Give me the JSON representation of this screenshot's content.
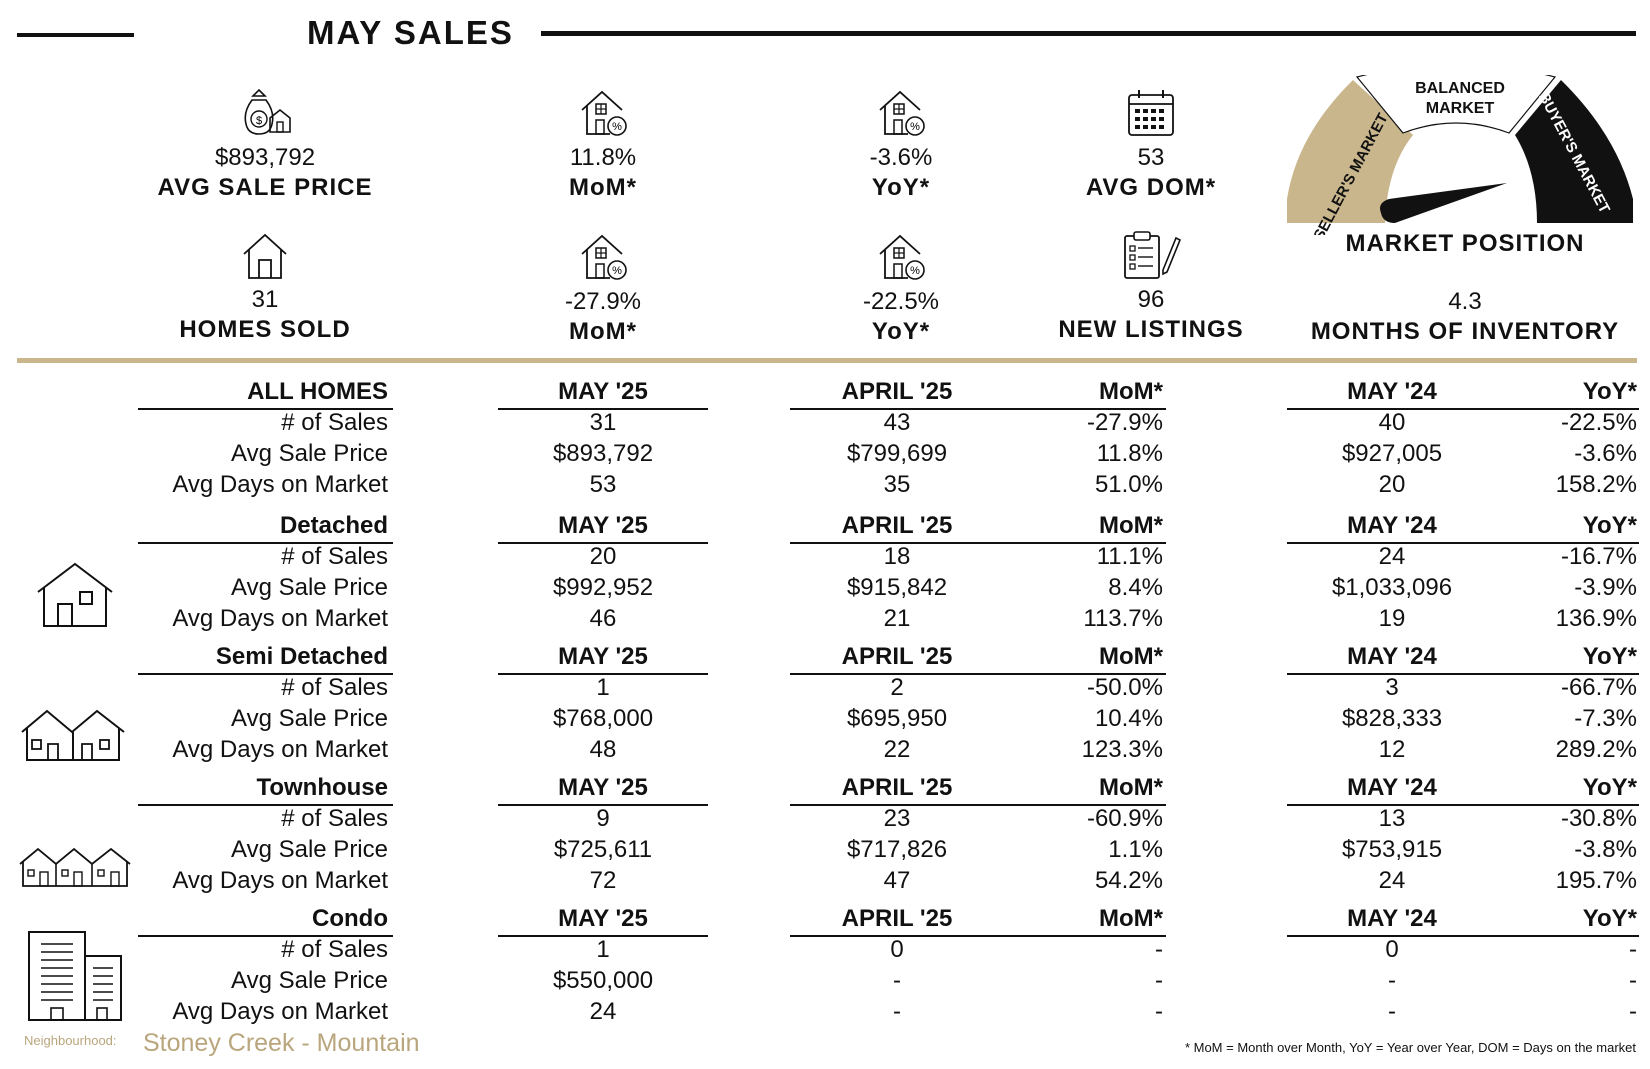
{
  "header": {
    "title": "MAY SALES"
  },
  "kpis_top": [
    {
      "value": "$893,792",
      "label": "AVG SALE PRICE",
      "icon": "money-bag-house-icon"
    },
    {
      "value": "11.8%",
      "label": "MoM*",
      "icon": "house-percent-icon"
    },
    {
      "value": "-3.6%",
      "label": "YoY*",
      "icon": "house-percent-icon"
    },
    {
      "value": "53",
      "label": "AVG DOM*",
      "icon": "calendar-icon"
    }
  ],
  "kpis_bottom": [
    {
      "value": "31",
      "label": "HOMES SOLD",
      "icon": "house-icon"
    },
    {
      "value": "-27.9%",
      "label": "MoM*",
      "icon": "house-percent-icon"
    },
    {
      "value": "-22.5%",
      "label": "YoY*",
      "icon": "house-percent-icon"
    },
    {
      "value": "96",
      "label": "NEW LISTINGS",
      "icon": "clipboard-pen-icon"
    },
    {
      "value": "4.3",
      "label": "MONTHS OF INVENTORY"
    }
  ],
  "gauge": {
    "sellers": "SELLER'S MARKET",
    "balanced_line1": "BALANCED",
    "balanced_line2": "MARKET",
    "buyers": "BUYER'S MARKET",
    "label": "MARKET POSITION",
    "colors": {
      "sellers": "#c9b68d",
      "balanced": "#ffffff",
      "buyers": "#111111"
    }
  },
  "columns": {
    "cur": "MAY '25",
    "prev": "APRIL '25",
    "mom": "MoM*",
    "ly": "MAY '24",
    "yoy": "YoY*"
  },
  "row_labels": [
    "# of Sales",
    "Avg Sale Price",
    "Avg Days on Market"
  ],
  "sections": [
    {
      "name": "ALL HOMES",
      "icon": "",
      "rows": [
        {
          "cur": "31",
          "prev": "43",
          "mom": "-27.9%",
          "ly": "40",
          "yoy": "-22.5%"
        },
        {
          "cur": "$893,792",
          "prev": "$799,699",
          "mom": "11.8%",
          "ly": "$927,005",
          "yoy": "-3.6%"
        },
        {
          "cur": "53",
          "prev": "35",
          "mom": "51.0%",
          "ly": "20",
          "yoy": "158.2%"
        }
      ]
    },
    {
      "name": "Detached",
      "icon": "detached-house-icon",
      "rows": [
        {
          "cur": "20",
          "prev": "18",
          "mom": "11.1%",
          "ly": "24",
          "yoy": "-16.7%"
        },
        {
          "cur": "$992,952",
          "prev": "$915,842",
          "mom": "8.4%",
          "ly": "$1,033,096",
          "yoy": "-3.9%"
        },
        {
          "cur": "46",
          "prev": "21",
          "mom": "113.7%",
          "ly": "19",
          "yoy": "136.9%"
        }
      ]
    },
    {
      "name": "Semi Detached",
      "icon": "semi-detached-house-icon",
      "rows": [
        {
          "cur": "1",
          "prev": "2",
          "mom": "-50.0%",
          "ly": "3",
          "yoy": "-66.7%"
        },
        {
          "cur": "$768,000",
          "prev": "$695,950",
          "mom": "10.4%",
          "ly": "$828,333",
          "yoy": "-7.3%"
        },
        {
          "cur": "48",
          "prev": "22",
          "mom": "123.3%",
          "ly": "12",
          "yoy": "289.2%"
        }
      ]
    },
    {
      "name": "Townhouse",
      "icon": "townhouse-icon",
      "rows": [
        {
          "cur": "9",
          "prev": "23",
          "mom": "-60.9%",
          "ly": "13",
          "yoy": "-30.8%"
        },
        {
          "cur": "$725,611",
          "prev": "$717,826",
          "mom": "1.1%",
          "ly": "$753,915",
          "yoy": "-3.8%"
        },
        {
          "cur": "72",
          "prev": "47",
          "mom": "54.2%",
          "ly": "24",
          "yoy": "195.7%"
        }
      ]
    },
    {
      "name": "Condo",
      "icon": "condo-building-icon",
      "rows": [
        {
          "cur": "1",
          "prev": "0",
          "mom": "-",
          "ly": "0",
          "yoy": "-"
        },
        {
          "cur": "$550,000",
          "prev": "-",
          "mom": "-",
          "ly": "-",
          "yoy": "-"
        },
        {
          "cur": "24",
          "prev": "-",
          "mom": "-",
          "ly": "-",
          "yoy": "-"
        }
      ]
    }
  ],
  "footer": {
    "neighbourhood_label": "Neighbourhood:",
    "neighbourhood": "Stoney Creek - Mountain",
    "note": "* MoM = Month over Month, YoY = Year over Year, DOM = Days on the market"
  }
}
